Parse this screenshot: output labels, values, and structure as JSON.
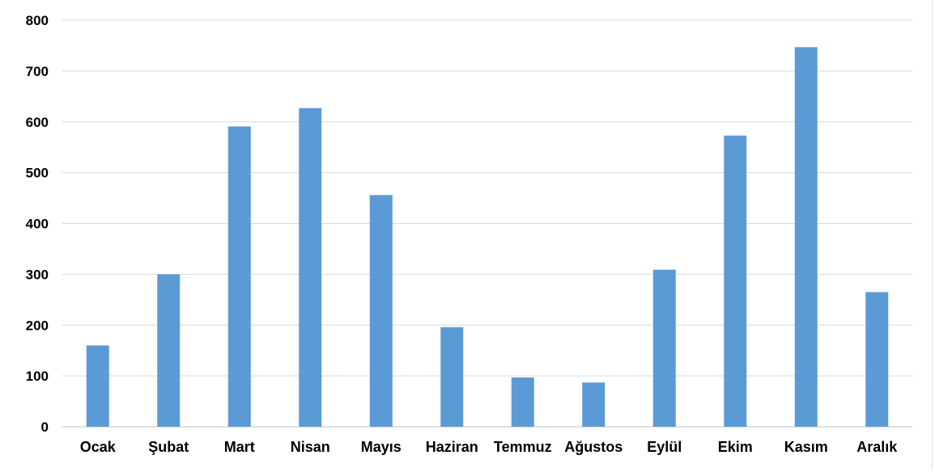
{
  "chart_data": {
    "type": "bar",
    "categories": [
      "Ocak",
      "Şubat",
      "Mart",
      "Nisan",
      "Mayıs",
      "Haziran",
      "Temmuz",
      "Ağustos",
      "Eylül",
      "Ekim",
      "Kasım",
      "Aralık"
    ],
    "values": [
      160,
      300,
      591,
      627,
      456,
      196,
      97,
      87,
      309,
      573,
      747,
      265
    ],
    "title": "",
    "xlabel": "",
    "ylabel": "",
    "ylim": [
      0,
      800
    ],
    "yticks": [
      0,
      100,
      200,
      300,
      400,
      500,
      600,
      700,
      800
    ],
    "grid": true,
    "legend": "none",
    "colors": {
      "bar": "#5b9bd5",
      "grid": "#d9d9d9",
      "axis": "#bfbfbf",
      "text": "#000000"
    }
  }
}
